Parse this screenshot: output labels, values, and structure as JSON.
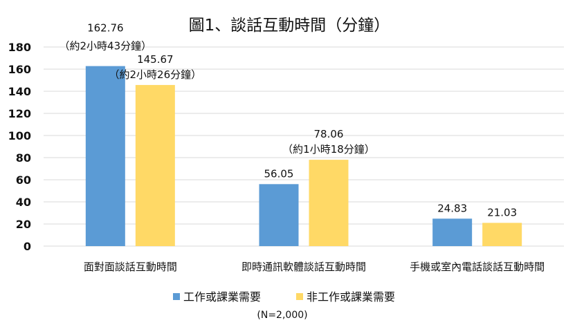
{
  "chart_data": {
    "type": "bar",
    "title": "圖1、談話互動時間（分鐘）",
    "categories": [
      "面對面談話互動時間",
      "即時通訊軟體談話互動時間",
      "手機或室內電話談話互動時間"
    ],
    "series": [
      {
        "name": "工作或課業需要",
        "color": "#5B9BD5",
        "values": [
          162.76,
          56.05,
          24.83
        ],
        "labels": [
          "162.76",
          "56.05",
          "24.83"
        ],
        "notes": [
          "（約2小時43分鐘）",
          "",
          ""
        ]
      },
      {
        "name": "非工作或課業需要",
        "color": "#FFD966",
        "values": [
          145.67,
          78.06,
          21.03
        ],
        "labels": [
          "145.67",
          "78.06",
          "21.03"
        ],
        "notes": [
          "（約2小時26分鐘）",
          "（約1小時18分鐘）",
          ""
        ]
      }
    ],
    "ylim": [
      0,
      180
    ],
    "yticks": [
      "0",
      "20",
      "40",
      "60",
      "80",
      "100",
      "120",
      "140",
      "160",
      "180"
    ],
    "grid": true,
    "legend_position": "bottom",
    "footnote": "(N=2,000)"
  }
}
